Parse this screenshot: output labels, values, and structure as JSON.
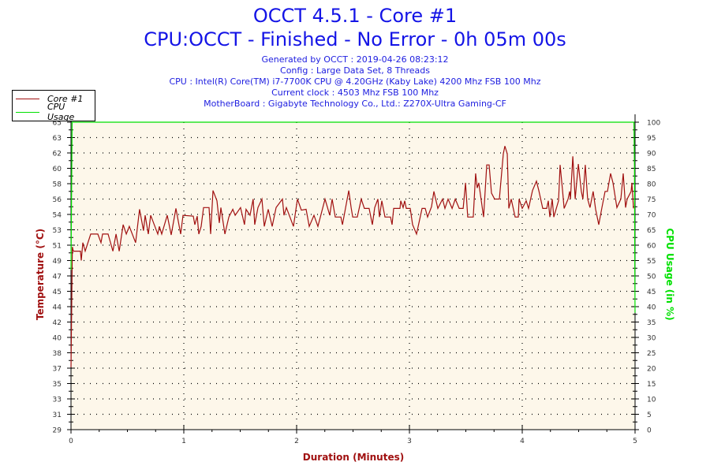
{
  "title": "OCCT 4.5.1 - Core #1",
  "subtitle": "CPU:OCCT - Finished - No Error - 0h 05m 00s",
  "info_lines": [
    "Generated by OCCT : 2019-04-26 08:23:12",
    "Config : Large Data Set, 8 Threads",
    "CPU : Intel(R) Core(TM) i7-7700K CPU @ 4.20GHz (Kaby Lake) 4200 Mhz FSB 100 Mhz",
    "Current clock : 4503 Mhz FSB 100 Mhz",
    "MotherBoard : Gigabyte Technology Co., Ltd.: Z270X-Ultra Gaming-CF"
  ],
  "legend": [
    {
      "label": "Core #1",
      "color": "#a01010"
    },
    {
      "label": "CPU Usage",
      "color": "#00e000"
    }
  ],
  "chart_data": {
    "type": "line",
    "xlabel": "Duration (Minutes)",
    "ylabel_left": "Temperature (°C)",
    "ylabel_right": "CPU Usage (in %)",
    "xlim": [
      0,
      5
    ],
    "x_ticks": [
      "0",
      "1",
      "2",
      "3",
      "4",
      "5"
    ],
    "ylim_left": [
      29,
      65
    ],
    "y_left_ticks": [
      "29",
      "31",
      "33",
      "35",
      "37",
      "38",
      "40",
      "42",
      "44",
      "45",
      "47",
      "49",
      "51",
      "53",
      "54",
      "56",
      "58",
      "60",
      "62",
      "63",
      "65"
    ],
    "ylim_right": [
      0,
      100
    ],
    "y_right_ticks": [
      "0",
      "5",
      "10",
      "15",
      "20",
      "25",
      "30",
      "35",
      "40",
      "45",
      "50",
      "55",
      "60",
      "65",
      "70",
      "75",
      "80",
      "85",
      "90",
      "95",
      "100"
    ],
    "grid": true,
    "legend_placement": "top-left",
    "colors": {
      "plot_background": "#fdf7ea",
      "title": "#1414e6",
      "left_axis": "#a01010",
      "right_axis": "#00e000",
      "x_axis_label": "#a01010"
    },
    "series": [
      {
        "name": "Core #1",
        "axis": "left",
        "color": "#a01010",
        "points": [
          [
            0.0,
            36.3
          ],
          [
            0.012,
            50.4
          ],
          [
            0.021,
            49.9
          ],
          [
            0.084,
            49.9
          ],
          [
            0.091,
            48.8
          ],
          [
            0.105,
            50.9
          ],
          [
            0.126,
            49.9
          ],
          [
            0.175,
            51.9
          ],
          [
            0.238,
            51.9
          ],
          [
            0.266,
            50.9
          ],
          [
            0.28,
            51.9
          ],
          [
            0.329,
            51.9
          ],
          [
            0.371,
            49.9
          ],
          [
            0.399,
            51.9
          ],
          [
            0.427,
            49.9
          ],
          [
            0.462,
            53.0
          ],
          [
            0.49,
            51.9
          ],
          [
            0.517,
            52.8
          ],
          [
            0.573,
            50.9
          ],
          [
            0.608,
            54.8
          ],
          [
            0.643,
            52.3
          ],
          [
            0.657,
            54.1
          ],
          [
            0.685,
            51.9
          ],
          [
            0.706,
            54.1
          ],
          [
            0.769,
            51.9
          ],
          [
            0.783,
            52.8
          ],
          [
            0.804,
            51.9
          ],
          [
            0.853,
            54.1
          ],
          [
            0.888,
            51.8
          ],
          [
            0.93,
            54.9
          ],
          [
            0.972,
            51.9
          ],
          [
            0.993,
            54.1
          ],
          [
            1.084,
            54.0
          ],
          [
            1.098,
            53.0
          ],
          [
            1.119,
            54.0
          ],
          [
            1.133,
            51.9
          ],
          [
            1.154,
            52.8
          ],
          [
            1.175,
            55.0
          ],
          [
            1.224,
            55.0
          ],
          [
            1.238,
            51.9
          ],
          [
            1.259,
            57.0
          ],
          [
            1.294,
            55.8
          ],
          [
            1.315,
            53.2
          ],
          [
            1.329,
            55.0
          ],
          [
            1.364,
            51.9
          ],
          [
            1.399,
            53.9
          ],
          [
            1.434,
            54.8
          ],
          [
            1.455,
            54.1
          ],
          [
            1.503,
            55.0
          ],
          [
            1.538,
            53.0
          ],
          [
            1.552,
            54.8
          ],
          [
            1.587,
            54.1
          ],
          [
            1.615,
            56.0
          ],
          [
            1.629,
            53.0
          ],
          [
            1.657,
            55.0
          ],
          [
            1.692,
            56.0
          ],
          [
            1.713,
            52.8
          ],
          [
            1.748,
            54.8
          ],
          [
            1.783,
            52.8
          ],
          [
            1.818,
            55.0
          ],
          [
            1.874,
            56.0
          ],
          [
            1.888,
            54.1
          ],
          [
            1.909,
            55.0
          ],
          [
            1.972,
            52.8
          ],
          [
            2.007,
            56.0
          ],
          [
            2.042,
            54.7
          ],
          [
            2.084,
            54.8
          ],
          [
            2.112,
            52.8
          ],
          [
            2.154,
            54.1
          ],
          [
            2.189,
            52.8
          ],
          [
            2.252,
            56.0
          ],
          [
            2.294,
            54.1
          ],
          [
            2.315,
            56.0
          ],
          [
            2.343,
            53.9
          ],
          [
            2.392,
            53.9
          ],
          [
            2.406,
            53.0
          ],
          [
            2.434,
            55.0
          ],
          [
            2.462,
            57.0
          ],
          [
            2.483,
            55.0
          ],
          [
            2.497,
            53.9
          ],
          [
            2.538,
            53.9
          ],
          [
            2.573,
            56.0
          ],
          [
            2.601,
            54.9
          ],
          [
            2.643,
            54.9
          ],
          [
            2.671,
            53.0
          ],
          [
            2.692,
            55.0
          ],
          [
            2.72,
            56.0
          ],
          [
            2.734,
            53.9
          ],
          [
            2.755,
            55.8
          ],
          [
            2.783,
            53.9
          ],
          [
            2.832,
            53.9
          ],
          [
            2.846,
            53.0
          ],
          [
            2.86,
            54.9
          ],
          [
            2.916,
            54.9
          ],
          [
            2.923,
            55.8
          ],
          [
            2.944,
            55.0
          ],
          [
            2.958,
            55.8
          ],
          [
            2.972,
            54.9
          ],
          [
            3.007,
            54.9
          ],
          [
            3.028,
            53.0
          ],
          [
            3.063,
            51.9
          ],
          [
            3.112,
            54.9
          ],
          [
            3.14,
            54.9
          ],
          [
            3.161,
            53.9
          ],
          [
            3.196,
            55.1
          ],
          [
            3.217,
            56.9
          ],
          [
            3.252,
            54.9
          ],
          [
            3.294,
            56.0
          ],
          [
            3.315,
            54.9
          ],
          [
            3.343,
            56.0
          ],
          [
            3.378,
            54.9
          ],
          [
            3.406,
            56.0
          ],
          [
            3.441,
            54.9
          ],
          [
            3.476,
            54.9
          ],
          [
            3.497,
            57.9
          ],
          [
            3.517,
            53.9
          ],
          [
            3.566,
            53.9
          ],
          [
            3.587,
            59.0
          ],
          [
            3.601,
            57.3
          ],
          [
            3.615,
            57.9
          ],
          [
            3.657,
            53.9
          ],
          [
            3.685,
            60.0
          ],
          [
            3.706,
            60.0
          ],
          [
            3.727,
            56.7
          ],
          [
            3.755,
            56.0
          ],
          [
            3.797,
            56.0
          ],
          [
            3.832,
            61.3
          ],
          [
            3.846,
            62.2
          ],
          [
            3.867,
            61.3
          ],
          [
            3.881,
            54.9
          ],
          [
            3.902,
            56.0
          ],
          [
            3.937,
            53.9
          ],
          [
            3.965,
            53.9
          ],
          [
            3.972,
            56.0
          ],
          [
            4.0,
            54.9
          ],
          [
            4.035,
            55.8
          ],
          [
            4.056,
            54.9
          ],
          [
            4.091,
            57.0
          ],
          [
            4.126,
            58.1
          ],
          [
            4.147,
            57.0
          ],
          [
            4.182,
            54.9
          ],
          [
            4.217,
            54.9
          ],
          [
            4.231,
            55.8
          ],
          [
            4.245,
            53.9
          ],
          [
            4.266,
            56.0
          ],
          [
            4.28,
            53.9
          ],
          [
            4.322,
            55.8
          ],
          [
            4.336,
            60.0
          ],
          [
            4.357,
            57.0
          ],
          [
            4.371,
            54.9
          ],
          [
            4.406,
            56.0
          ],
          [
            4.42,
            56.9
          ],
          [
            4.427,
            56.0
          ],
          [
            4.448,
            61.0
          ],
          [
            4.469,
            56.0
          ],
          [
            4.497,
            60.1
          ],
          [
            4.524,
            56.9
          ],
          [
            4.538,
            56.0
          ],
          [
            4.559,
            60.0
          ],
          [
            4.58,
            56.0
          ],
          [
            4.601,
            55.0
          ],
          [
            4.629,
            56.9
          ],
          [
            4.65,
            54.8
          ],
          [
            4.678,
            53.0
          ],
          [
            4.706,
            55.0
          ],
          [
            4.734,
            56.9
          ],
          [
            4.755,
            56.9
          ],
          [
            4.783,
            59.0
          ],
          [
            4.804,
            57.9
          ],
          [
            4.839,
            55.0
          ],
          [
            4.874,
            56.0
          ],
          [
            4.895,
            59.0
          ],
          [
            4.916,
            55.0
          ],
          [
            4.93,
            56.0
          ],
          [
            4.965,
            56.9
          ],
          [
            4.972,
            57.9
          ],
          [
            4.986,
            54.9
          ]
        ]
      },
      {
        "name": "CPU Usage",
        "axis": "right",
        "color": "#00e000",
        "points": [
          [
            0.0,
            52
          ],
          [
            0.01,
            100
          ],
          [
            4.99,
            100
          ],
          [
            4.995,
            85
          ],
          [
            4.998,
            52
          ],
          [
            5.0,
            38
          ]
        ]
      }
    ]
  }
}
